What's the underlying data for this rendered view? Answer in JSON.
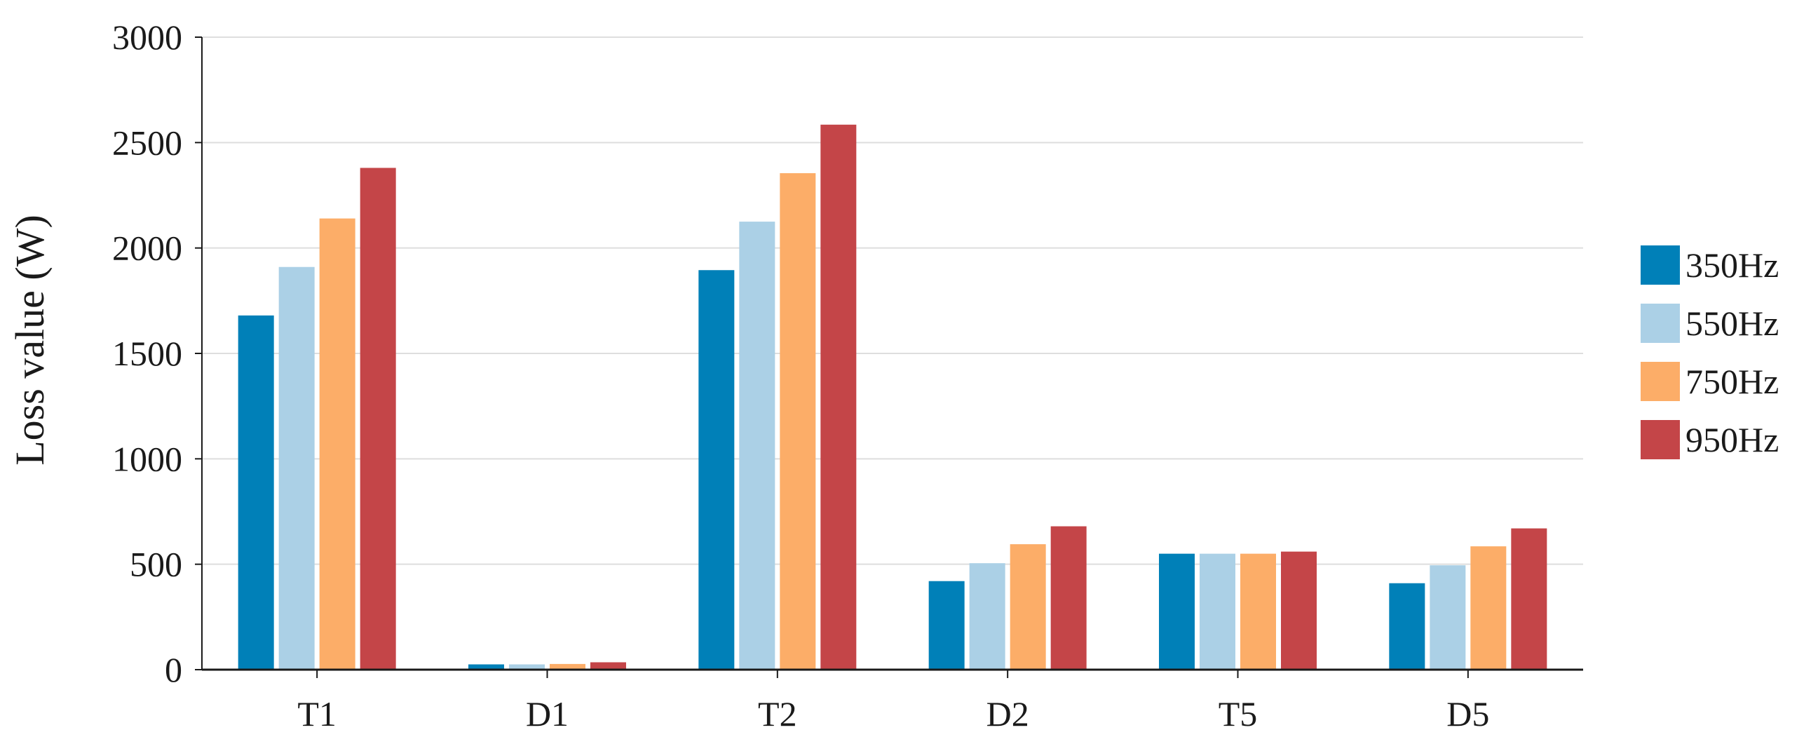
{
  "chart_data": {
    "type": "bar",
    "title": "",
    "xlabel": "",
    "ylabel": "Loss value (W)",
    "ylim": [
      0,
      3000
    ],
    "yticks": [
      0,
      500,
      1000,
      1500,
      2000,
      2500,
      3000
    ],
    "grid": true,
    "legend_position": "right",
    "categories": [
      "T1",
      "D1",
      "T2",
      "D2",
      "T5",
      "D5"
    ],
    "series": [
      {
        "name": "350Hz",
        "color": "#0080b8",
        "values": [
          1680,
          25,
          1895,
          420,
          550,
          410
        ]
      },
      {
        "name": "550Hz",
        "color": "#abd0e6",
        "values": [
          1910,
          25,
          2125,
          505,
          550,
          495
        ]
      },
      {
        "name": "750Hz",
        "color": "#fcad68",
        "values": [
          2140,
          27,
          2355,
          595,
          550,
          585
        ]
      },
      {
        "name": "950Hz",
        "color": "#c44548",
        "values": [
          2380,
          35,
          2585,
          680,
          560,
          670
        ]
      }
    ]
  }
}
